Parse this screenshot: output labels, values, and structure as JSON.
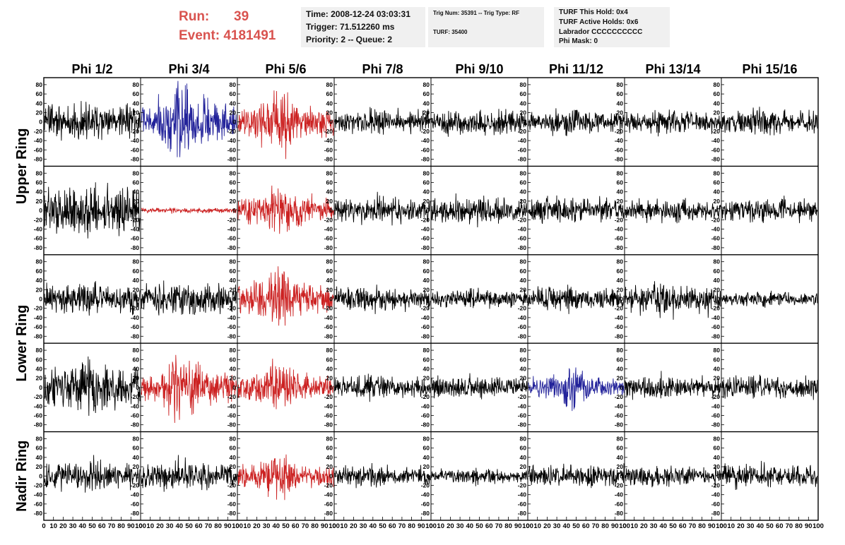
{
  "header": {
    "run_label": "Run:",
    "run_value": "39",
    "event_label": "Event:",
    "event_value": "4181491",
    "time": "Time: 2008-12-24 03:03:31",
    "trigger": "Trigger: 71.512260 ms",
    "priority": "Priority: 2 -- Queue: 2",
    "trig_num": "Trig Num: 35391 -- Trig Type: RF",
    "turf": "TURF: 35400",
    "turf_this_hold": "TURF This Hold: 0x4",
    "turf_active_holds": "TURF Active Holds: 0x6",
    "labrador": "Labrador CCCCCCCCCC",
    "phi_mask": "Phi Mask: 0"
  },
  "chart_data": {
    "type": "line",
    "columns": [
      "Phi 1/2",
      "Phi 3/4",
      "Phi 5/6",
      "Phi 7/8",
      "Phi 9/10",
      "Phi 11/12",
      "Phi 13/14",
      "Phi 15/16"
    ],
    "ring_labels": [
      {
        "text": "Upper Ring",
        "rows": [
          0,
          1
        ]
      },
      {
        "text": "Lower Ring",
        "rows": [
          2,
          3
        ]
      },
      {
        "text": "Nadir Ring",
        "rows": [
          4
        ]
      }
    ],
    "xlim": [
      0,
      100
    ],
    "ylim": [
      -95,
      95
    ],
    "y_ticks": [
      -80,
      -60,
      -40,
      -20,
      0,
      20,
      40,
      60,
      80
    ],
    "x_tick_labels": [
      "0",
      "10",
      "20",
      "30",
      "40",
      "50",
      "60",
      "70",
      "80",
      "90",
      "100"
    ],
    "colors": {
      "normal": "#000000",
      "triggered": "#cc2222",
      "blue": "#22229a"
    },
    "panels": [
      [
        {
          "color": "normal",
          "amp": 20,
          "burst": 0.3,
          "seed": 11
        },
        {
          "color": "blue",
          "amp": 22,
          "burst": 1.6,
          "seed": 12
        },
        {
          "color": "triggered",
          "amp": 18,
          "burst": 1.5,
          "seed": 13
        },
        {
          "color": "normal",
          "amp": 12,
          "burst": 0.3,
          "seed": 14
        },
        {
          "color": "normal",
          "amp": 14,
          "burst": 0.3,
          "seed": 15
        },
        {
          "color": "normal",
          "amp": 13,
          "burst": 0.3,
          "seed": 16
        },
        {
          "color": "normal",
          "amp": 13,
          "burst": 0.3,
          "seed": 17
        },
        {
          "color": "normal",
          "amp": 13,
          "burst": 0.3,
          "seed": 18
        }
      ],
      [
        {
          "color": "normal",
          "amp": 26,
          "burst": 0.4,
          "seed": 21
        },
        {
          "color": "triggered",
          "amp": 3,
          "burst": 0.2,
          "seed": 22
        },
        {
          "color": "triggered",
          "amp": 15,
          "burst": 1.2,
          "seed": 23
        },
        {
          "color": "normal",
          "amp": 13,
          "burst": 0.3,
          "seed": 24
        },
        {
          "color": "normal",
          "amp": 14,
          "burst": 0.3,
          "seed": 25
        },
        {
          "color": "normal",
          "amp": 13,
          "burst": 0.3,
          "seed": 26
        },
        {
          "color": "normal",
          "amp": 12,
          "burst": 0.3,
          "seed": 27
        },
        {
          "color": "normal",
          "amp": 13,
          "burst": 0.3,
          "seed": 28
        }
      ],
      [
        {
          "color": "normal",
          "amp": 17,
          "burst": 0.3,
          "seed": 31
        },
        {
          "color": "normal",
          "amp": 17,
          "burst": 0.4,
          "seed": 32
        },
        {
          "color": "triggered",
          "amp": 17,
          "burst": 1.4,
          "seed": 33
        },
        {
          "color": "normal",
          "amp": 12,
          "burst": 0.3,
          "seed": 34
        },
        {
          "color": "normal",
          "amp": 10,
          "burst": 0.3,
          "seed": 35
        },
        {
          "color": "normal",
          "amp": 12,
          "burst": 0.3,
          "seed": 36
        },
        {
          "color": "normal",
          "amp": 16,
          "burst": 0.3,
          "seed": 37
        },
        {
          "color": "normal",
          "amp": 8,
          "burst": 0.3,
          "seed": 38
        }
      ],
      [
        {
          "color": "normal",
          "amp": 24,
          "burst": 0.3,
          "seed": 41
        },
        {
          "color": "triggered",
          "amp": 17,
          "burst": 1.5,
          "seed": 42
        },
        {
          "color": "triggered",
          "amp": 14,
          "burst": 1.2,
          "seed": 43
        },
        {
          "color": "normal",
          "amp": 12,
          "burst": 0.3,
          "seed": 44
        },
        {
          "color": "normal",
          "amp": 11,
          "burst": 0.3,
          "seed": 45
        },
        {
          "color": "blue",
          "amp": 12,
          "burst": 1.3,
          "seed": 46
        },
        {
          "color": "normal",
          "amp": 12,
          "burst": 0.3,
          "seed": 47
        },
        {
          "color": "normal",
          "amp": 13,
          "burst": 0.3,
          "seed": 48
        }
      ],
      [
        {
          "color": "normal",
          "amp": 16,
          "burst": 0.3,
          "seed": 51
        },
        {
          "color": "normal",
          "amp": 15,
          "burst": 0.3,
          "seed": 52
        },
        {
          "color": "triggered",
          "amp": 12,
          "burst": 1.4,
          "seed": 53
        },
        {
          "color": "normal",
          "amp": 11,
          "burst": 0.3,
          "seed": 54
        },
        {
          "color": "normal",
          "amp": 8,
          "burst": 0.3,
          "seed": 55
        },
        {
          "color": "normal",
          "amp": 12,
          "burst": 0.3,
          "seed": 56
        },
        {
          "color": "normal",
          "amp": 11,
          "burst": 0.3,
          "seed": 57
        },
        {
          "color": "normal",
          "amp": 12,
          "burst": 0.3,
          "seed": 58
        }
      ]
    ]
  }
}
